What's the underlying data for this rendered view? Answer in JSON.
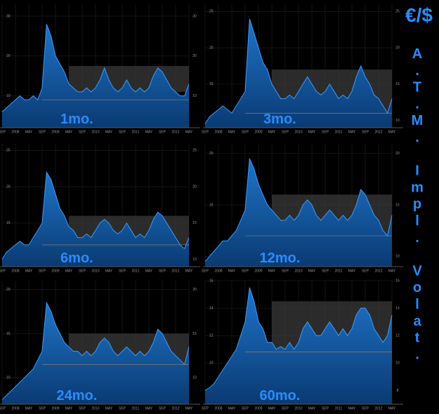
{
  "side_title": "€/$",
  "side_label": "A.T.M. Impl. Volat.",
  "chart_data": [
    {
      "type": "area",
      "title": "1mo.",
      "color": "#3d9bff",
      "categories": [
        "SEP",
        null,
        null,
        "2008",
        null,
        null,
        "MAY",
        null,
        null,
        "SEP",
        null,
        null,
        "2009",
        null,
        null,
        "MAY",
        null,
        null,
        "SEP",
        null,
        null,
        "2010",
        null,
        null,
        "MAY",
        null,
        null,
        "SEP",
        null,
        null,
        "2011",
        null,
        null,
        "MAY",
        null,
        null,
        "SEP",
        null,
        null,
        "2012",
        null,
        null,
        "MAY"
      ],
      "values": [
        6,
        7,
        8,
        9,
        10,
        9,
        9,
        10,
        9,
        12,
        28,
        25,
        20,
        18,
        16,
        13,
        12,
        11,
        11,
        12,
        11,
        12,
        14,
        17,
        14,
        12,
        11,
        12,
        14,
        12,
        11,
        12,
        11,
        12,
        15,
        17,
        16,
        14,
        12,
        11,
        10,
        10,
        13
      ],
      "ylim": [
        2,
        33
      ],
      "yticks": [
        10,
        20,
        30
      ],
      "ref_line": 9,
      "box": [
        11,
        17.5
      ],
      "grid": true
    },
    {
      "type": "area",
      "title": "3mo.",
      "color": "#3d9bff",
      "categories": [
        "SEP",
        null,
        null,
        "2008",
        null,
        null,
        "MAY",
        null,
        null,
        "SEP",
        null,
        null,
        "2009",
        null,
        null,
        "MAY",
        null,
        null,
        "SEP",
        null,
        null,
        "2010",
        null,
        null,
        "MAY",
        null,
        null,
        "SEP",
        null,
        null,
        "2011",
        null,
        null,
        "MAY",
        null,
        null,
        "SEP",
        null,
        null,
        "2012",
        null,
        null,
        "MAY"
      ],
      "values": [
        9.5,
        10.5,
        11,
        11.5,
        12,
        11.5,
        11,
        12,
        13,
        14,
        24,
        22,
        20,
        18,
        17,
        15,
        14,
        13,
        13,
        13.5,
        13,
        14,
        15,
        16,
        15,
        14,
        13.5,
        14,
        15,
        14,
        13,
        13.5,
        13,
        14,
        16,
        17.5,
        16,
        15,
        13.5,
        13,
        12,
        11,
        13
      ],
      "ylim": [
        9,
        26
      ],
      "yticks": [
        10,
        15,
        20,
        25
      ],
      "ref_line": 11,
      "box": [
        11,
        17
      ],
      "grid": true
    },
    {
      "type": "area",
      "title": "6mo.",
      "color": "#3d9bff",
      "categories": [
        "SEP",
        null,
        null,
        "2008",
        null,
        null,
        "MAY",
        null,
        null,
        "SEP",
        null,
        null,
        "2009",
        null,
        null,
        "MAY",
        null,
        null,
        "SEP",
        null,
        null,
        "2010",
        null,
        null,
        "MAY",
        null,
        null,
        "SEP",
        null,
        null,
        "2011",
        null,
        null,
        "MAY",
        null,
        null,
        "SEP",
        null,
        null,
        "2012",
        null,
        null,
        "MAY"
      ],
      "values": [
        10,
        11,
        11.5,
        12,
        12.5,
        12,
        12,
        13,
        14,
        15,
        22,
        21,
        19,
        17,
        16,
        14.5,
        14,
        13,
        13,
        13.5,
        13,
        14,
        15,
        15.5,
        15,
        14,
        13.5,
        14,
        15,
        14,
        13,
        13.5,
        13,
        14,
        15.5,
        16.5,
        16,
        15,
        14,
        13,
        12,
        11.5,
        13
      ],
      "ylim": [
        9,
        26
      ],
      "yticks": [
        10,
        15,
        20,
        25
      ],
      "ref_line": 12,
      "box": [
        12,
        16
      ],
      "grid": true
    },
    {
      "type": "area",
      "title": "12mo.",
      "color": "#3d9bff",
      "categories": [
        "SEP",
        null,
        null,
        "2008",
        null,
        null,
        "MAY",
        null,
        null,
        "SEP",
        null,
        null,
        "2009",
        null,
        null,
        "MAY",
        null,
        null,
        "SEP",
        null,
        null,
        "2010",
        null,
        null,
        "MAY",
        null,
        null,
        "SEP",
        null,
        null,
        "2011",
        null,
        null,
        "MAY",
        null,
        null,
        "SEP",
        null,
        null,
        "2012",
        null,
        null,
        "MAY"
      ],
      "values": [
        9.5,
        10,
        10.5,
        11,
        11.5,
        11.5,
        12,
        12.5,
        13.5,
        14.5,
        19.5,
        18.5,
        17,
        16,
        15,
        14.5,
        14,
        13.5,
        13.5,
        14,
        13.5,
        14,
        15,
        15.5,
        15,
        14,
        13.5,
        14,
        14.5,
        14,
        13.5,
        14,
        13.5,
        14,
        15,
        16.5,
        16,
        15,
        14,
        13.5,
        12.5,
        12,
        14
      ],
      "ylim": [
        9,
        21
      ],
      "yticks": [
        10,
        15,
        20
      ],
      "ref_line": 12,
      "box": [
        12,
        16
      ],
      "grid": true
    },
    {
      "type": "area",
      "title": "24mo.",
      "color": "#3d9bff",
      "categories": [
        "SEP",
        null,
        null,
        "2008",
        null,
        null,
        "MAY",
        null,
        null,
        "SEP",
        null,
        null,
        "2009",
        null,
        null,
        "MAY",
        null,
        null,
        "SEP",
        null,
        null,
        "2010",
        null,
        null,
        "MAY",
        null,
        null,
        "SEP",
        null,
        null,
        "2011",
        null,
        null,
        "MAY",
        null,
        null,
        "SEP",
        null,
        null,
        "2012",
        null,
        null,
        "MAY"
      ],
      "values": [
        7.5,
        8,
        8.5,
        9,
        9.5,
        10,
        10.5,
        11,
        12,
        13,
        18.5,
        17.5,
        16,
        15,
        14,
        13.5,
        13,
        13,
        12.5,
        13,
        12.5,
        13,
        14,
        14.5,
        14,
        13,
        12.5,
        13,
        13.5,
        13,
        12.5,
        13,
        12.5,
        13,
        14,
        15.5,
        15,
        14,
        13,
        12.5,
        12,
        11.5,
        13.5
      ],
      "ylim": [
        7,
        21
      ],
      "yticks": [
        10,
        15,
        20
      ],
      "ref_line": 11.5,
      "box": [
        11.5,
        15
      ],
      "grid": true
    },
    {
      "type": "area",
      "title": "60mo.",
      "color": "#3d9bff",
      "categories": [
        "SEP",
        null,
        null,
        "2008",
        null,
        null,
        "MAY",
        null,
        null,
        "SEP",
        null,
        null,
        "2009",
        null,
        null,
        "MAY",
        null,
        null,
        "SEP",
        null,
        null,
        "2010",
        null,
        null,
        "MAY",
        null,
        null,
        "SEP",
        null,
        null,
        "2011",
        null,
        null,
        "MAY",
        null,
        null,
        "SEP",
        null,
        null,
        "2012",
        null,
        null,
        "MAY"
      ],
      "values": [
        8,
        8.2,
        8.5,
        9,
        9.5,
        10,
        10.5,
        11,
        12,
        13,
        15.5,
        14.5,
        13,
        12.5,
        11.5,
        11.5,
        11,
        11.2,
        11,
        11.5,
        11,
        11.5,
        12.5,
        13,
        12.5,
        12,
        12,
        12.5,
        13,
        12.5,
        12,
        12.5,
        12,
        12.5,
        13.5,
        14,
        14,
        13.5,
        12.5,
        12,
        11.5,
        12,
        13.5
      ],
      "ylim": [
        7,
        16
      ],
      "yticks": [
        8,
        10,
        12,
        14,
        16
      ],
      "ref_line": 10.8,
      "box": [
        11,
        14.5
      ],
      "grid": true
    }
  ]
}
